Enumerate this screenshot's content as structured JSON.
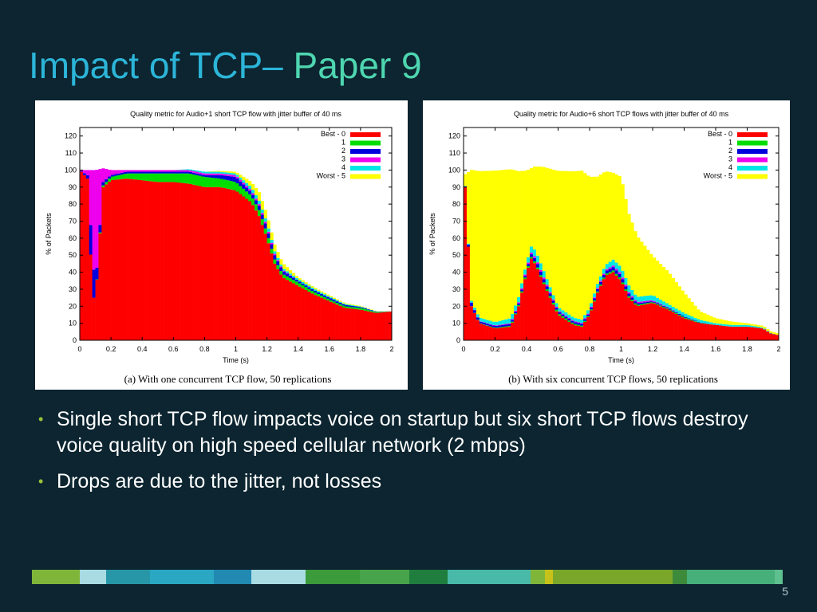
{
  "slide": {
    "title_part1": "Impact of TCP– ",
    "title_part2": "Paper 9",
    "bullets": [
      "Single short TCP flow impacts voice on startup but six short TCP flows destroy voice quality on high speed cellular network (2 mbps)",
      "Drops are due to the jitter, not losses"
    ],
    "page_number": "5",
    "colors": {
      "background": "#0c2530",
      "title_main": "#2cb5d8",
      "title_accent": "#4ed6b0",
      "bullet_dot": "#9bc23a"
    },
    "strip_colors": [
      "#7fb63a",
      "#a9dbe3",
      "#2797a8",
      "#29a7c3",
      "#2189b2",
      "#a9dbe3",
      "#3b9a3a",
      "#48a44a",
      "#1f7d3d",
      "#49b9a8",
      "#7fb63a",
      "#c7c21a",
      "#7aa62a",
      "#3c8a3a",
      "#47b07a",
      "#5ec08f"
    ]
  },
  "chart_data": [
    {
      "type": "stacked-bar",
      "title": "Quality metric for Audio+1 short TCP flow with jitter buffer of 40 ms",
      "caption": "(a) With one concurrent TCP flow, 50 replications",
      "xlabel": "Time (s)",
      "ylabel": "% of Packets",
      "xlim": [
        0,
        2
      ],
      "ylim": [
        0,
        125
      ],
      "xticks": [
        "0",
        "0.2",
        "0.4",
        "0.6",
        "0.8",
        "1",
        "1.2",
        "1.4",
        "1.6",
        "1.8",
        "2"
      ],
      "yticks": [
        "0",
        "10",
        "20",
        "30",
        "40",
        "50",
        "60",
        "70",
        "80",
        "90",
        "100",
        "110",
        "120"
      ],
      "legend_position": "top-right",
      "series": [
        {
          "name": "Best - 0",
          "color": "#ff0000",
          "x": [
            0.0,
            0.05,
            0.08,
            0.1,
            0.15,
            0.2,
            0.3,
            0.4,
            0.5,
            0.6,
            0.7,
            0.8,
            0.9,
            1.0,
            1.1,
            1.15,
            1.2,
            1.25,
            1.3,
            1.4,
            1.5,
            1.6,
            1.7,
            1.8,
            1.9,
            2.0
          ],
          "y": [
            100,
            95,
            28,
            22,
            90,
            94,
            95,
            94,
            93,
            93,
            92,
            90,
            90,
            88,
            81,
            73,
            60,
            45,
            37,
            32,
            27,
            23,
            19,
            18,
            16,
            17
          ]
        },
        {
          "name": "1",
          "color": "#00dd00",
          "x": [
            0.0,
            0.1,
            0.2,
            0.3,
            0.4,
            0.5,
            0.6,
            0.7,
            0.8,
            0.9,
            1.0,
            1.1,
            1.2,
            1.3,
            1.4,
            1.6,
            1.8,
            2.0
          ],
          "y": [
            0,
            0,
            2,
            3,
            4,
            5,
            5,
            6,
            6,
            5,
            5,
            4,
            3,
            2,
            2,
            1,
            1,
            0
          ]
        },
        {
          "name": "2",
          "color": "#0000dd",
          "x": [
            0.0,
            0.05,
            0.08,
            0.1,
            0.15,
            0.2,
            0.4,
            0.6,
            0.8,
            0.9,
            1.0,
            1.1,
            1.2,
            1.3,
            1.4,
            1.6,
            2.0
          ],
          "y": [
            0,
            2,
            25,
            8,
            2,
            1,
            1,
            1,
            1,
            2,
            3,
            2,
            3,
            2,
            1,
            1,
            0
          ]
        },
        {
          "name": "3",
          "color": "#ee00ee",
          "x": [
            0.0,
            0.05,
            0.08,
            0.1,
            0.15,
            0.2,
            0.3,
            0.4,
            0.6,
            0.8,
            1.0,
            1.2,
            1.4,
            2.0
          ],
          "y": [
            0,
            3,
            47,
            70,
            8,
            3,
            1,
            1,
            1,
            1,
            1,
            1,
            0,
            0
          ]
        },
        {
          "name": "4",
          "color": "#00e5e5",
          "x": [
            0.0,
            0.1,
            0.2,
            0.4,
            0.6,
            0.8,
            1.0,
            1.1,
            1.2,
            1.3,
            1.4,
            2.0
          ],
          "y": [
            0,
            0,
            0,
            0,
            0,
            1,
            1,
            2,
            2,
            1,
            1,
            0
          ]
        },
        {
          "name": "Worst - 5",
          "color": "#ffff00",
          "x": [
            0.0,
            0.2,
            0.4,
            0.6,
            0.8,
            1.0,
            1.1,
            1.15,
            1.2,
            1.3,
            1.4,
            2.0
          ],
          "y": [
            0,
            0,
            0,
            0,
            0,
            1,
            3,
            5,
            5,
            3,
            1,
            0
          ]
        }
      ]
    },
    {
      "type": "stacked-bar",
      "title": "Quality metric for Audio+6 short TCP flows with jitter buffer of 40 ms",
      "caption": "(b) With six concurrent TCP flows, 50 replications",
      "xlabel": "Time (s)",
      "ylabel": "% of Packets",
      "xlim": [
        0,
        2
      ],
      "ylim": [
        0,
        125
      ],
      "xticks": [
        "0",
        "0.2",
        "0.4",
        "0.6",
        "0.8",
        "1",
        "1.2",
        "1.4",
        "1.6",
        "1.8",
        "2"
      ],
      "yticks": [
        "0",
        "10",
        "20",
        "30",
        "40",
        "50",
        "60",
        "70",
        "80",
        "90",
        "100",
        "110",
        "120"
      ],
      "legend_position": "top-right",
      "series": [
        {
          "name": "Best - 0",
          "color": "#ff0000",
          "x": [
            0.0,
            0.01,
            0.05,
            0.1,
            0.2,
            0.3,
            0.35,
            0.4,
            0.43,
            0.46,
            0.5,
            0.6,
            0.7,
            0.75,
            0.8,
            0.85,
            0.9,
            0.95,
            1.0,
            1.05,
            1.1,
            1.2,
            1.3,
            1.4,
            1.5,
            1.6,
            1.7,
            1.8,
            1.9,
            1.95,
            2.0
          ],
          "y": [
            100,
            90,
            20,
            10,
            7,
            8,
            20,
            40,
            48,
            44,
            35,
            15,
            9,
            8,
            15,
            28,
            38,
            40,
            35,
            25,
            20,
            22,
            18,
            13,
            10,
            9,
            8,
            8,
            7,
            4,
            3
          ]
        },
        {
          "name": "1",
          "color": "#00dd00",
          "x": [
            0.0,
            0.3,
            0.45,
            0.5,
            0.6,
            0.8,
            0.95,
            1.0,
            1.2,
            1.4,
            1.6,
            2.0
          ],
          "y": [
            0,
            0.5,
            1,
            1,
            1,
            0.5,
            1,
            1,
            0.5,
            0.5,
            0,
            0
          ]
        },
        {
          "name": "2",
          "color": "#0000dd",
          "x": [
            0.0,
            0.05,
            0.1,
            0.3,
            0.4,
            0.45,
            0.5,
            0.6,
            0.7,
            0.8,
            0.95,
            1.0,
            1.1,
            1.2,
            1.4,
            1.6,
            2.0
          ],
          "y": [
            0,
            2,
            1,
            1,
            1,
            2,
            2,
            1,
            1,
            1,
            2,
            2,
            1,
            0.5,
            0.5,
            0,
            0
          ]
        },
        {
          "name": "3",
          "color": "#ee00ee",
          "x": [
            0.0,
            0.3,
            0.45,
            0.5,
            0.6,
            0.8,
            1.0,
            1.2,
            1.4,
            2.0
          ],
          "y": [
            0,
            0.5,
            1,
            1,
            0.5,
            0.5,
            1,
            0.5,
            0,
            0
          ]
        },
        {
          "name": "4",
          "color": "#00e5e5",
          "x": [
            0.0,
            0.05,
            0.1,
            0.2,
            0.3,
            0.4,
            0.45,
            0.5,
            0.55,
            0.6,
            0.7,
            0.8,
            0.9,
            1.0,
            1.05,
            1.1,
            1.2,
            1.3,
            1.4,
            1.6,
            1.8,
            2.0
          ],
          "y": [
            0,
            1,
            2,
            2,
            3,
            3,
            4,
            4,
            3,
            2,
            2,
            2,
            3,
            4,
            4,
            3,
            3,
            2,
            2,
            1,
            1,
            0
          ]
        },
        {
          "name": "Worst - 5",
          "color": "#ffff00",
          "x": [
            0.0,
            0.01,
            0.05,
            0.1,
            0.2,
            0.3,
            0.35,
            0.4,
            0.43,
            0.46,
            0.5,
            0.6,
            0.7,
            0.75,
            0.8,
            0.85,
            0.9,
            0.95,
            1.0,
            1.05,
            1.1,
            1.2,
            1.3,
            1.4,
            1.5,
            1.6,
            1.7,
            1.8,
            1.9,
            1.95,
            2.0
          ],
          "y": [
            0,
            7,
            77,
            86,
            89,
            87.5,
            74,
            54,
            46,
            50,
            59,
            80,
            86,
            87.5,
            77,
            63,
            55,
            51,
            53,
            42,
            36,
            23,
            19,
            12,
            5,
            3,
            2,
            1,
            1,
            1,
            1
          ]
        }
      ]
    }
  ]
}
